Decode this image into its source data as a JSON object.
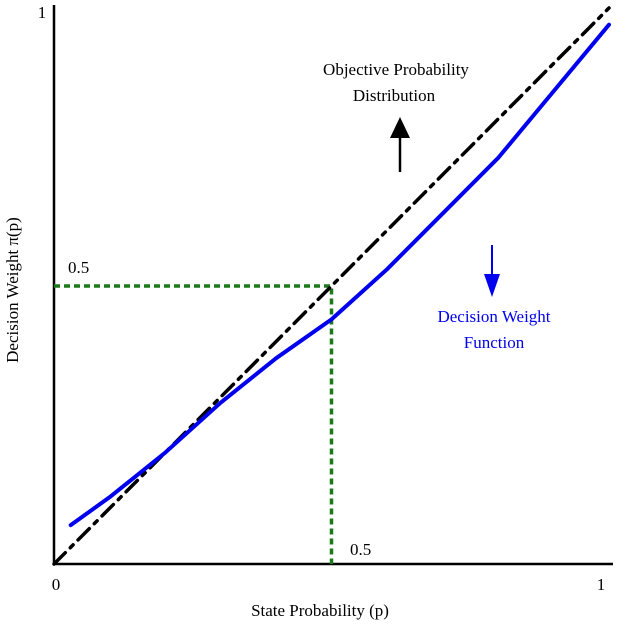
{
  "chart_data": {
    "type": "line",
    "title": "",
    "xlabel": "State Probability (p)",
    "ylabel": "Decision Weight π(p)",
    "xlim": [
      0,
      1
    ],
    "ylim": [
      0,
      1
    ],
    "x_ticks": [
      "0",
      "1"
    ],
    "y_ticks": [
      "1"
    ],
    "grid": false,
    "series": [
      {
        "name": "Objective Probability Distribution",
        "color": "#000000",
        "style": "dash-dot",
        "x": [
          0,
          1
        ],
        "y": [
          0,
          1
        ]
      },
      {
        "name": "Decision Weight Function",
        "color": "#0000ee",
        "style": "solid",
        "x": [
          0.03,
          0.1,
          0.2,
          0.3,
          0.4,
          0.5,
          0.6,
          0.7,
          0.8,
          0.9,
          1.0
        ],
        "y": [
          0.07,
          0.12,
          0.2,
          0.29,
          0.37,
          0.44,
          0.53,
          0.63,
          0.73,
          0.85,
          0.97
        ]
      }
    ],
    "reference": {
      "x": 0.5,
      "y": 0.5,
      "color": "#1a7a1a",
      "x_label": "0.5",
      "y_label": "0.5"
    },
    "annotations": [
      {
        "name": "objective",
        "lines": [
          "Objective Probability",
          "Distribution"
        ],
        "color": "#000000",
        "arrow": "up"
      },
      {
        "name": "decision",
        "lines": [
          "Decision Weight",
          "Function"
        ],
        "color": "#0000ee",
        "arrow": "down"
      }
    ]
  }
}
